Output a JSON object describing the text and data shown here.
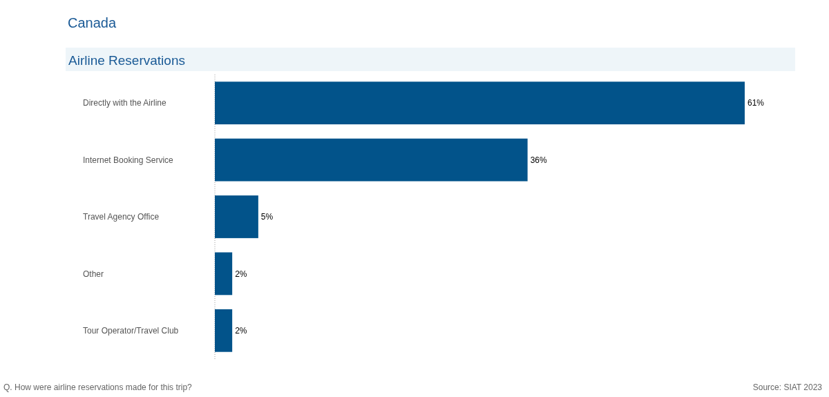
{
  "chart_data": {
    "type": "bar",
    "orientation": "horizontal",
    "title": "Canada",
    "subtitle": "Airline Reservations",
    "categories": [
      "Directly with the Airline",
      "Internet Booking Service",
      "Travel Agency Office",
      "Other",
      "Tour Operator/Travel Club"
    ],
    "values": [
      61,
      36,
      5,
      2,
      2
    ],
    "value_labels": [
      "61%",
      "36%",
      "5%",
      "2%",
      "2%"
    ],
    "color": "#02538a",
    "annotations": [
      "Q. How were airline reservations made for this trip?",
      "Source: SIAT 2023"
    ]
  }
}
